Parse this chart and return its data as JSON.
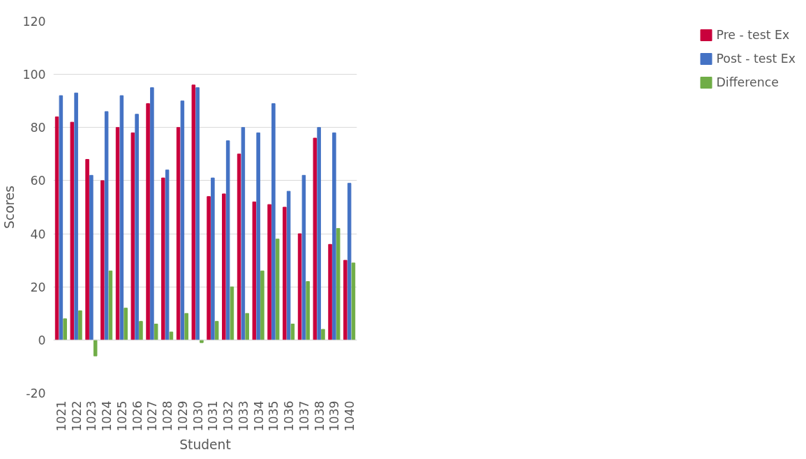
{
  "chart_data": {
    "type": "bar",
    "xlabel": "Student",
    "ylabel": "Scores",
    "categories": [
      "1021",
      "1022",
      "1023",
      "1024",
      "1025",
      "1026",
      "1027",
      "1028",
      "1029",
      "1030",
      "1031",
      "1032",
      "1033",
      "1034",
      "1035",
      "1036",
      "1037",
      "1038",
      "1039",
      "1040"
    ],
    "series": [
      {
        "name": "Pre - test Ex",
        "color": "#c9003c",
        "values": [
          84,
          82,
          68,
          60,
          80,
          78,
          89,
          61,
          80,
          96,
          54,
          55,
          70,
          52,
          51,
          50,
          40,
          76,
          36,
          30
        ]
      },
      {
        "name": "Post - test Ex",
        "color": "#4472c4",
        "values": [
          92,
          93,
          62,
          86,
          92,
          85,
          95,
          64,
          90,
          95,
          61,
          75,
          80,
          78,
          89,
          56,
          62,
          80,
          78,
          59
        ]
      },
      {
        "name": "Difference",
        "color": "#70ad47",
        "values": [
          8,
          11,
          -6,
          26,
          12,
          7,
          6,
          3,
          10,
          -1,
          7,
          20,
          10,
          26,
          38,
          6,
          22,
          4,
          42,
          29
        ]
      }
    ],
    "ylim": [
      -20,
      120
    ],
    "yticks": [
      -20,
      0,
      20,
      40,
      60,
      80,
      100,
      120
    ],
    "grid": "y",
    "legend": "right"
  }
}
